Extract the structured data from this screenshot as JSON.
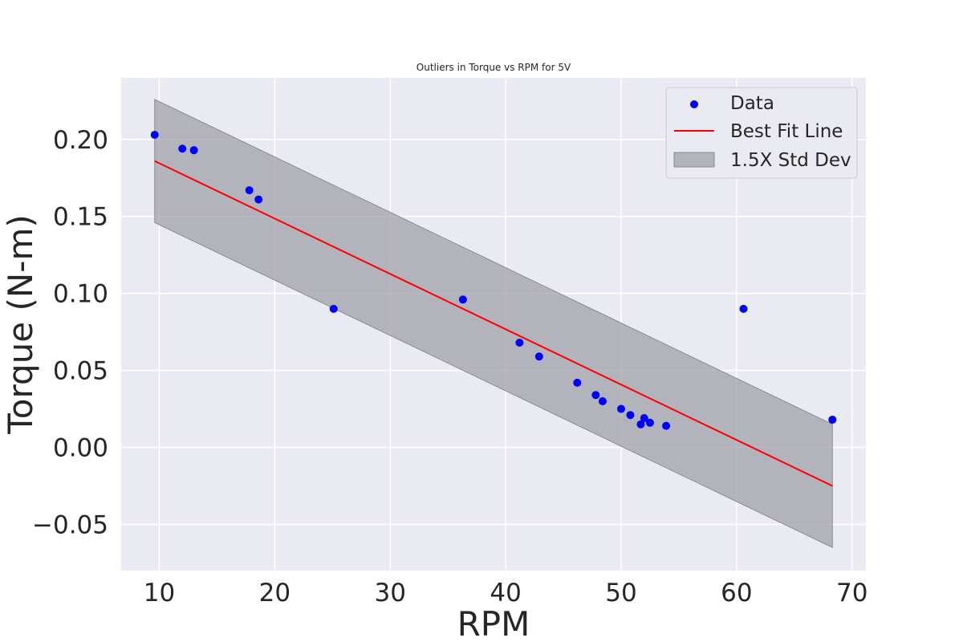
{
  "chart_data": {
    "type": "scatter",
    "title": "Outliers in Torque vs RPM for 5V",
    "xlabel": "RPM",
    "ylabel": "Torque (N-m)",
    "xlim": [
      6.7,
      71.2
    ],
    "ylim": [
      -0.08,
      0.24
    ],
    "xticks": [
      10,
      20,
      30,
      40,
      50,
      60,
      70
    ],
    "yticks": [
      -0.05,
      0.0,
      0.05,
      0.1,
      0.15,
      0.2
    ],
    "ytick_labels": [
      "−0.05",
      "0.00",
      "0.05",
      "0.10",
      "0.15",
      "0.20"
    ],
    "grid": true,
    "legend_position": "top-right",
    "series": [
      {
        "name": "Data",
        "kind": "scatter",
        "color": "#0000ff",
        "points": [
          [
            9.6,
            0.203
          ],
          [
            12.0,
            0.194
          ],
          [
            13.0,
            0.193
          ],
          [
            17.8,
            0.167
          ],
          [
            18.6,
            0.161
          ],
          [
            25.1,
            0.09
          ],
          [
            36.3,
            0.096
          ],
          [
            41.2,
            0.068
          ],
          [
            42.9,
            0.059
          ],
          [
            46.2,
            0.042
          ],
          [
            47.8,
            0.034
          ],
          [
            48.4,
            0.03
          ],
          [
            50.0,
            0.025
          ],
          [
            50.8,
            0.021
          ],
          [
            51.7,
            0.015
          ],
          [
            52.0,
            0.019
          ],
          [
            52.5,
            0.016
          ],
          [
            53.9,
            0.014
          ],
          [
            60.6,
            0.09
          ],
          [
            68.3,
            0.018
          ]
        ]
      },
      {
        "name": "Best Fit Line",
        "kind": "line",
        "color": "#ff0000",
        "points": [
          [
            9.6,
            0.186
          ],
          [
            68.3,
            -0.025
          ]
        ]
      },
      {
        "name": "1.5X Std Dev",
        "kind": "band",
        "color": "#a0a0a8",
        "x": [
          9.6,
          68.3
        ],
        "upper": [
          0.226,
          0.015
        ],
        "lower": [
          0.146,
          -0.065
        ]
      }
    ]
  }
}
